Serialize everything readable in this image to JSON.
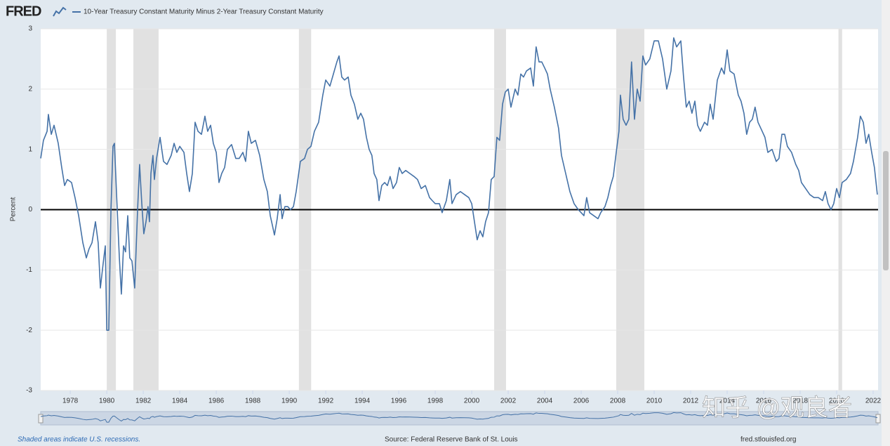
{
  "chart_data": {
    "type": "line",
    "logo": "FRED",
    "title": "10-Year Treasury Constant Maturity Minus 2-Year Treasury Constant Maturity",
    "y_label": "Percent",
    "footnote": "Shaded areas indicate U.S. recessions.",
    "source": "Source: Federal Reserve Bank of St. Louis",
    "site": "fred.stlouisfed.org",
    "watermark": "知乎 @观良者",
    "xlim": [
      1976.38,
      2022.27
    ],
    "xticks": [
      1978,
      1980,
      1982,
      1984,
      1986,
      1988,
      1990,
      1992,
      1994,
      1996,
      1998,
      2000,
      2002,
      2004,
      2006,
      2008,
      2010,
      2012,
      2014,
      2016,
      2018,
      2020,
      2022
    ],
    "ylim": [
      -3,
      3
    ],
    "yticks": [
      -3,
      -2,
      -1,
      0,
      1,
      2,
      3
    ],
    "grid": true,
    "recession_color": "#e1e1e1",
    "recessions": [
      [
        1980.0,
        1980.5
      ],
      [
        1981.46,
        1982.84
      ],
      [
        1990.53,
        1991.2
      ],
      [
        2001.23,
        2001.88
      ],
      [
        2007.92,
        2009.46
      ],
      [
        2020.1,
        2020.3
      ]
    ],
    "x": [
      1976.38,
      1976.53,
      1976.73,
      1976.8,
      1976.96,
      1977.11,
      1977.34,
      1977.53,
      1977.69,
      1977.84,
      1978.07,
      1978.26,
      1978.46,
      1978.69,
      1978.88,
      1979.03,
      1979.19,
      1979.38,
      1979.53,
      1979.65,
      1979.8,
      1979.92,
      1980.0,
      1980.11,
      1980.23,
      1980.34,
      1980.42,
      1980.53,
      1980.69,
      1980.8,
      1980.92,
      1981.03,
      1981.15,
      1981.26,
      1981.38,
      1981.53,
      1981.69,
      1981.8,
      1981.92,
      1982.03,
      1982.15,
      1982.26,
      1982.34,
      1982.42,
      1982.53,
      1982.61,
      1982.73,
      1982.92,
      1983.11,
      1983.3,
      1983.53,
      1983.69,
      1983.84,
      1984.0,
      1984.23,
      1984.38,
      1984.53,
      1984.69,
      1984.84,
      1985.0,
      1985.19,
      1985.38,
      1985.53,
      1985.69,
      1985.84,
      1986.0,
      1986.15,
      1986.3,
      1986.46,
      1986.61,
      1986.84,
      1987.07,
      1987.26,
      1987.46,
      1987.61,
      1987.76,
      1987.92,
      1988.15,
      1988.38,
      1988.61,
      1988.8,
      1988.96,
      1989.07,
      1989.19,
      1989.34,
      1989.5,
      1989.61,
      1989.76,
      1989.92,
      1990.07,
      1990.23,
      1990.38,
      1990.61,
      1990.84,
      1991.0,
      1991.19,
      1991.38,
      1991.61,
      1991.84,
      1992.0,
      1992.23,
      1992.42,
      1992.61,
      1992.73,
      1992.88,
      1993.03,
      1993.23,
      1993.38,
      1993.57,
      1993.76,
      1993.92,
      1994.07,
      1994.23,
      1994.38,
      1994.53,
      1994.65,
      1994.8,
      1994.92,
      1995.07,
      1995.23,
      1995.38,
      1995.53,
      1995.69,
      1995.88,
      1996.03,
      1996.19,
      1996.38,
      1996.61,
      1996.84,
      1997.03,
      1997.23,
      1997.46,
      1997.69,
      1997.84,
      1998.0,
      1998.23,
      1998.38,
      1998.61,
      1998.8,
      1998.92,
      1999.15,
      1999.38,
      1999.61,
      1999.84,
      2000.0,
      2000.15,
      2000.3,
      2000.46,
      2000.61,
      2000.76,
      2000.92,
      2001.07,
      2001.23,
      2001.38,
      2001.53,
      2001.69,
      2001.84,
      2002.0,
      2002.15,
      2002.38,
      2002.53,
      2002.69,
      2002.84,
      2003.0,
      2003.23,
      2003.38,
      2003.53,
      2003.69,
      2003.84,
      2004.0,
      2004.15,
      2004.3,
      2004.53,
      2004.76,
      2004.92,
      2005.15,
      2005.38,
      2005.61,
      2005.84,
      2006.0,
      2006.15,
      2006.3,
      2006.46,
      2006.69,
      2006.92,
      2007.07,
      2007.3,
      2007.46,
      2007.61,
      2007.76,
      2007.92,
      2008.07,
      2008.15,
      2008.3,
      2008.46,
      2008.61,
      2008.76,
      2008.92,
      2009.07,
      2009.23,
      2009.38,
      2009.53,
      2009.76,
      2010.0,
      2010.23,
      2010.46,
      2010.69,
      2010.92,
      2011.07,
      2011.23,
      2011.46,
      2011.61,
      2011.76,
      2011.92,
      2012.07,
      2012.23,
      2012.38,
      2012.53,
      2012.76,
      2012.92,
      2013.07,
      2013.23,
      2013.46,
      2013.69,
      2013.84,
      2014.0,
      2014.15,
      2014.38,
      2014.61,
      2014.76,
      2014.92,
      2015.07,
      2015.23,
      2015.38,
      2015.53,
      2015.69,
      2015.92,
      2016.07,
      2016.23,
      2016.46,
      2016.69,
      2016.84,
      2017.0,
      2017.15,
      2017.3,
      2017.53,
      2017.76,
      2017.92,
      2018.07,
      2018.3,
      2018.53,
      2018.76,
      2019.0,
      2019.23,
      2019.38,
      2019.53,
      2019.69,
      2019.84,
      2020.0,
      2020.15,
      2020.3,
      2020.53,
      2020.76,
      2020.92,
      2021.15,
      2021.3,
      2021.46,
      2021.61,
      2021.76,
      2021.92,
      2022.07,
      2022.23
    ],
    "series": [
      {
        "name": "10-Year Treasury Constant Maturity Minus 2-Year Treasury Constant Maturity",
        "color": "#4572a7",
        "values": [
          0.85,
          1.15,
          1.3,
          1.58,
          1.25,
          1.4,
          1.1,
          0.7,
          0.4,
          0.5,
          0.45,
          0.2,
          -0.1,
          -0.55,
          -0.8,
          -0.65,
          -0.55,
          -0.2,
          -0.55,
          -1.3,
          -0.9,
          -0.6,
          -2.0,
          -2.0,
          0.0,
          1.05,
          1.1,
          0.3,
          -0.8,
          -1.4,
          -0.6,
          -0.7,
          -0.1,
          -0.8,
          -0.85,
          -1.3,
          0.0,
          0.75,
          0.1,
          -0.4,
          -0.2,
          0.05,
          -0.2,
          0.6,
          0.9,
          0.5,
          0.85,
          1.2,
          0.8,
          0.75,
          0.9,
          1.1,
          0.95,
          1.05,
          0.95,
          0.6,
          0.3,
          0.6,
          1.45,
          1.3,
          1.25,
          1.55,
          1.3,
          1.4,
          1.1,
          0.95,
          0.45,
          0.6,
          0.7,
          1.0,
          1.08,
          0.85,
          0.85,
          0.95,
          0.8,
          1.3,
          1.1,
          1.15,
          0.9,
          0.5,
          0.3,
          -0.1,
          -0.25,
          -0.42,
          -0.15,
          0.25,
          -0.15,
          0.05,
          0.05,
          0.0,
          0.05,
          0.3,
          0.8,
          0.85,
          1.0,
          1.05,
          1.3,
          1.45,
          1.9,
          2.15,
          2.05,
          2.25,
          2.45,
          2.55,
          2.2,
          2.15,
          2.2,
          1.9,
          1.75,
          1.5,
          1.6,
          1.5,
          1.2,
          1.0,
          0.9,
          0.6,
          0.5,
          0.15,
          0.4,
          0.45,
          0.4,
          0.55,
          0.35,
          0.45,
          0.7,
          0.6,
          0.65,
          0.6,
          0.55,
          0.5,
          0.35,
          0.4,
          0.2,
          0.15,
          0.1,
          0.1,
          -0.05,
          0.15,
          0.5,
          0.1,
          0.25,
          0.3,
          0.25,
          0.2,
          0.1,
          -0.2,
          -0.5,
          -0.35,
          -0.45,
          -0.2,
          -0.05,
          0.5,
          0.55,
          1.2,
          1.15,
          1.75,
          1.95,
          2.0,
          1.7,
          2.0,
          1.9,
          2.25,
          2.2,
          2.3,
          2.35,
          2.05,
          2.7,
          2.45,
          2.45,
          2.35,
          2.25,
          2.0,
          1.7,
          1.35,
          0.9,
          0.6,
          0.3,
          0.1,
          0.0,
          -0.05,
          -0.1,
          0.2,
          -0.05,
          -0.1,
          -0.15,
          -0.05,
          0.05,
          0.2,
          0.4,
          0.55,
          0.95,
          1.3,
          1.9,
          1.5,
          1.4,
          1.5,
          2.45,
          1.5,
          2.0,
          1.8,
          2.55,
          2.4,
          2.5,
          2.8,
          2.8,
          2.5,
          2.0,
          2.3,
          2.85,
          2.7,
          2.8,
          2.2,
          1.7,
          1.8,
          1.6,
          1.8,
          1.4,
          1.3,
          1.45,
          1.4,
          1.75,
          1.5,
          2.15,
          2.35,
          2.25,
          2.65,
          2.3,
          2.25,
          1.9,
          1.8,
          1.6,
          1.25,
          1.45,
          1.5,
          1.7,
          1.45,
          1.3,
          1.2,
          0.95,
          1.0,
          0.8,
          0.85,
          1.25,
          1.25,
          1.05,
          0.95,
          0.75,
          0.65,
          0.45,
          0.35,
          0.25,
          0.2,
          0.2,
          0.15,
          0.3,
          0.1,
          0.0,
          0.1,
          0.35,
          0.2,
          0.45,
          0.5,
          0.6,
          0.8,
          1.2,
          1.55,
          1.45,
          1.1,
          1.25,
          0.95,
          0.7,
          0.25
        ]
      }
    ]
  }
}
